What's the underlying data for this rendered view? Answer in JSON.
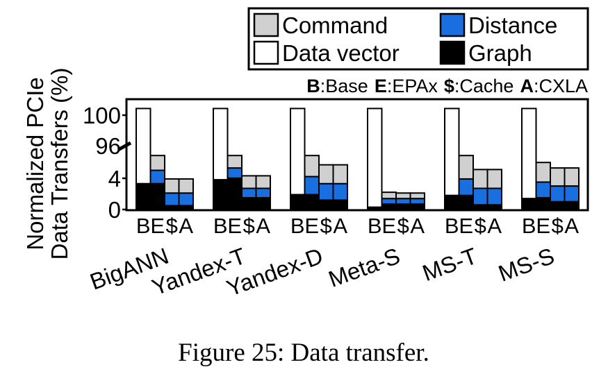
{
  "chart_data": {
    "type": "bar",
    "stacked": true,
    "ylabel_line1": "Normalized PCIe",
    "ylabel_line2": "Data Transfers (%)",
    "y_axis_break": {
      "lower_range": [
        0,
        6
      ],
      "upper_range": [
        94,
        100
      ]
    },
    "yticks": [
      "100",
      "96",
      "4",
      "0"
    ],
    "grid": false,
    "legend_position": "top-right",
    "config_key": [
      {
        "key": "B",
        "name": ":Base"
      },
      {
        "key": "E",
        "name": ":EPAx"
      },
      {
        "key": "$",
        "name": ":Cache"
      },
      {
        "key": "A",
        "name": ":CXLA"
      }
    ],
    "configs": [
      "B",
      "E",
      "$",
      "A"
    ],
    "groups": [
      "BigANN",
      "Yandex-T",
      "Yandex-D",
      "Meta-S",
      "MS-T",
      "MS-S"
    ],
    "series": [
      {
        "name": "Graph",
        "color": "#000000",
        "values": [
          [
            3.3,
            3.3,
            0.5,
            0.5
          ],
          [
            3.8,
            4.0,
            1.5,
            1.5
          ],
          [
            1.9,
            1.9,
            1.2,
            1.2
          ],
          [
            0.3,
            0.7,
            0.7,
            0.7
          ],
          [
            1.8,
            1.8,
            0.6,
            0.6
          ],
          [
            1.4,
            1.5,
            1.0,
            1.0
          ]
        ]
      },
      {
        "name": "Distance",
        "color": "#1a6fe0",
        "values": [
          [
            0,
            1.7,
            1.6,
            1.6
          ],
          [
            0,
            1.3,
            1.2,
            1.2
          ],
          [
            0,
            2.3,
            2.1,
            2.1
          ],
          [
            0,
            0.7,
            0.7,
            0.7
          ],
          [
            0,
            2.1,
            2.1,
            2.1
          ],
          [
            0,
            2.0,
            2.0,
            2.0
          ]
        ]
      },
      {
        "name": "Command",
        "color": "#d0d0d0",
        "values": [
          [
            0,
            2.5,
            1.8,
            1.8
          ],
          [
            0,
            1.7,
            1.6,
            1.6
          ],
          [
            0,
            2.6,
            2.4,
            2.4
          ],
          [
            0,
            0.8,
            0.7,
            0.7
          ],
          [
            0,
            2.7,
            2.4,
            2.4
          ],
          [
            0,
            2.5,
            2.3,
            2.3
          ]
        ]
      },
      {
        "name": "Data vector",
        "color": "#ffffff",
        "values": [
          [
            96.7,
            0,
            0,
            0
          ],
          [
            96.2,
            0,
            0,
            0
          ],
          [
            98.1,
            0,
            0,
            0
          ],
          [
            99.7,
            0,
            0,
            0
          ],
          [
            98.2,
            0,
            0,
            0
          ],
          [
            98.6,
            0,
            0,
            0
          ]
        ]
      }
    ],
    "legend": [
      {
        "name": "Command",
        "color": "#d0d0d0"
      },
      {
        "name": "Distance",
        "color": "#1a6fe0"
      },
      {
        "name": "Data vector",
        "color": "#ffffff"
      },
      {
        "name": "Graph",
        "color": "#000000"
      }
    ]
  },
  "caption": "Figure 25: Data transfer."
}
